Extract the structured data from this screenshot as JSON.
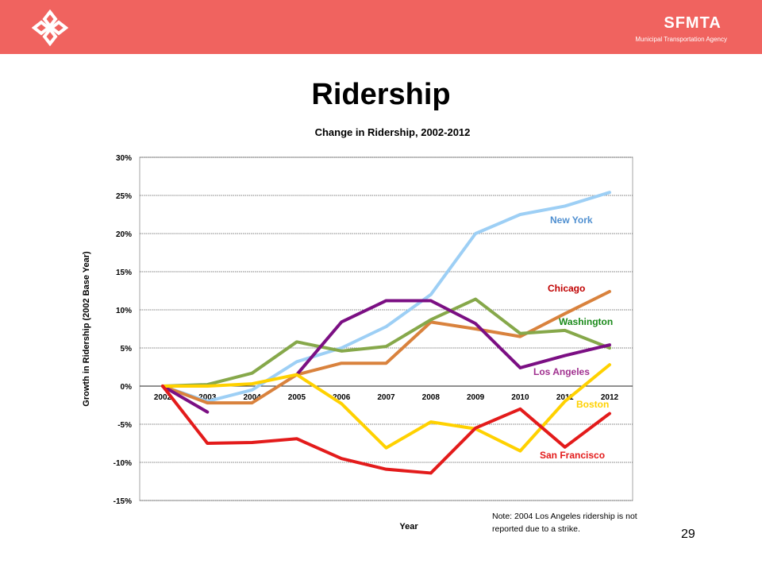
{
  "header": {
    "brand_name": "SFMTA",
    "brand_sub": "Municipal Transportation Agency"
  },
  "slide_title": "Ridership",
  "page_number": "29",
  "note": "Note: 2004 Los Angeles ridership is not reported due to a strike.",
  "colors": {
    "header_bg": "#f0635f",
    "new_york": "#9dcff5",
    "chicago": "#d9823d",
    "washington": "#86a84a",
    "los_angeles": "#7b0f83",
    "boston": "#ffd100",
    "san_francisco": "#e31b1b"
  },
  "chart_data": {
    "type": "line",
    "title": "Change in Ridership, 2002-2012",
    "xlabel": "Year",
    "ylabel": "Growth in Ridership (2002 Base Year)",
    "x": [
      "2002",
      "2003",
      "2004",
      "2005",
      "2006",
      "2007",
      "2008",
      "2009",
      "2010",
      "2011",
      "2012"
    ],
    "ylim": [
      -15,
      30
    ],
    "yticks": [
      "30%",
      "25%",
      "20%",
      "15%",
      "10%",
      "5%",
      "0%",
      "-5%",
      "-10%",
      "-15%"
    ],
    "ytick_values": [
      30,
      25,
      20,
      15,
      10,
      5,
      0,
      -5,
      -10,
      -15
    ],
    "grid": true,
    "legend": "labels at line ends",
    "series": [
      {
        "name": "New York",
        "color": "#9dcff5",
        "label_color": "#4f8fd0",
        "values": [
          0,
          -2,
          -0.5,
          3.2,
          5,
          7.8,
          12,
          20,
          22.5,
          23.6,
          25.4
        ]
      },
      {
        "name": "Chicago",
        "color": "#d9823d",
        "label_color": "#c00000",
        "values": [
          0,
          -2.2,
          -2.2,
          1.5,
          3,
          3,
          8.4,
          7.5,
          6.5,
          9.5,
          12.4
        ]
      },
      {
        "name": "Washington",
        "color": "#86a84a",
        "label_color": "#1a8a1a",
        "values": [
          0,
          0.2,
          1.7,
          5.8,
          4.6,
          5.2,
          8.7,
          11.4,
          6.9,
          7.3,
          5
        ]
      },
      {
        "name": "Los Angeles",
        "color": "#7b0f83",
        "label_color": "#a0308f",
        "values": [
          0,
          -3.4,
          null,
          1.5,
          8.4,
          11.2,
          11.2,
          8.2,
          2.4,
          4,
          5.4
        ]
      },
      {
        "name": "Boston",
        "color": "#ffd100",
        "label_color": "#ffd100",
        "values": [
          0,
          0,
          0.3,
          1.5,
          -2.3,
          -8.1,
          -4.7,
          -5.6,
          -8.5,
          -2,
          2.8
        ]
      },
      {
        "name": "San Francisco",
        "color": "#e31b1b",
        "label_color": "#e31b1b",
        "values": [
          0,
          -7.5,
          -7.4,
          -6.9,
          -9.5,
          -10.9,
          -11.4,
          -5.5,
          -3,
          -8,
          -3.6
        ]
      }
    ]
  }
}
